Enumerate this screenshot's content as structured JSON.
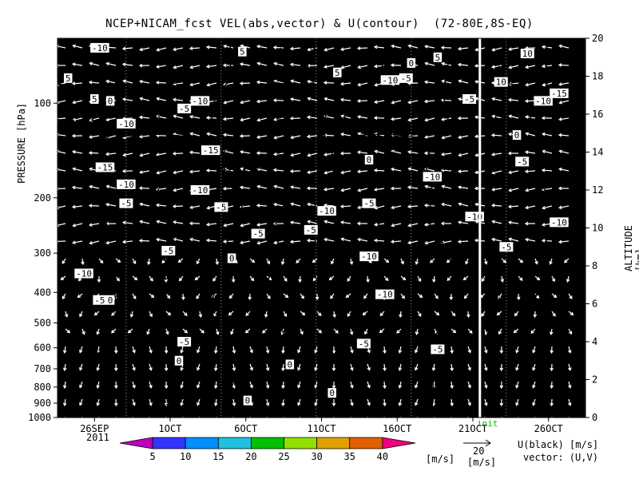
{
  "chart_data": {
    "type": "heatmap",
    "title": "NCEP+NICAM_fcst VEL(abs,vector) & U(contour)  (72-80E,8S-EQ)",
    "ylabel_left": "PRESSURE [hPa]",
    "ylabel_right": "ALTITUDE [km]",
    "x_ticks": [
      "26SEP",
      "1OCT",
      "6OCT",
      "11OCT",
      "16OCT",
      "21OCT",
      "26OCT"
    ],
    "x_year": "2011",
    "init_label": "init",
    "pressure_ticks": [
      100,
      200,
      300,
      400,
      500,
      600,
      700,
      800,
      900,
      1000
    ],
    "altitude_ticks": [
      0,
      2,
      4,
      6,
      8,
      10,
      12,
      14,
      16,
      18,
      20
    ],
    "colorbar": {
      "ticks": [
        5,
        10,
        15,
        20,
        25,
        30,
        35,
        40
      ],
      "unit": "[m/s]",
      "colors": [
        "#c000c0",
        "#3434ff",
        "#0090ff",
        "#20c0e0",
        "#00c000",
        "#90e000",
        "#e0a000",
        "#e06000",
        "#f00080"
      ]
    },
    "vector_ref": {
      "value": "20",
      "unit": "[m/s]"
    },
    "legend_text": [
      "U(black) [m/s]",
      "vector: (U,V)"
    ],
    "contour_labels": [
      {
        "t": "-10",
        "x": 0.08,
        "a": 19.5
      },
      {
        "t": "5",
        "x": 0.35,
        "a": 19.3
      },
      {
        "t": "5",
        "x": 0.72,
        "a": 19.0
      },
      {
        "t": "10",
        "x": 0.89,
        "a": 19.2
      },
      {
        "t": "5",
        "x": 0.02,
        "a": 17.9
      },
      {
        "t": "0",
        "x": 0.67,
        "a": 18.7
      },
      {
        "t": "5",
        "x": 0.53,
        "a": 18.2
      },
      {
        "t": "5",
        "x": 0.07,
        "a": 16.8
      },
      {
        "t": "0",
        "x": 0.1,
        "a": 16.7
      },
      {
        "t": "-10",
        "x": 0.27,
        "a": 16.7
      },
      {
        "t": "-5",
        "x": 0.24,
        "a": 16.3
      },
      {
        "t": "-10",
        "x": 0.13,
        "a": 15.5
      },
      {
        "t": "-10",
        "x": 0.63,
        "a": 17.8
      },
      {
        "t": "-5",
        "x": 0.66,
        "a": 17.9
      },
      {
        "t": "-5",
        "x": 0.78,
        "a": 16.8
      },
      {
        "t": "10",
        "x": 0.84,
        "a": 17.7
      },
      {
        "t": "-10",
        "x": 0.92,
        "a": 16.7
      },
      {
        "t": "-15",
        "x": 0.95,
        "a": 17.1
      },
      {
        "t": "0",
        "x": 0.87,
        "a": 14.9
      },
      {
        "t": "-15",
        "x": 0.29,
        "a": 14.1
      },
      {
        "t": "0",
        "x": 0.59,
        "a": 13.6
      },
      {
        "t": "-5",
        "x": 0.88,
        "a": 13.5
      },
      {
        "t": "-15",
        "x": 0.09,
        "a": 13.2
      },
      {
        "t": "-10",
        "x": 0.13,
        "a": 12.3
      },
      {
        "t": "-10",
        "x": 0.27,
        "a": 12.0
      },
      {
        "t": "-10",
        "x": 0.71,
        "a": 12.7
      },
      {
        "t": "-5",
        "x": 0.59,
        "a": 11.3
      },
      {
        "t": "-5",
        "x": 0.13,
        "a": 11.3
      },
      {
        "t": "-5",
        "x": 0.31,
        "a": 11.1
      },
      {
        "t": "-10",
        "x": 0.51,
        "a": 10.9
      },
      {
        "t": "-10",
        "x": 0.79,
        "a": 10.6
      },
      {
        "t": "-10",
        "x": 0.95,
        "a": 10.3
      },
      {
        "t": "-5",
        "x": 0.38,
        "a": 9.7
      },
      {
        "t": "-5",
        "x": 0.48,
        "a": 9.9
      },
      {
        "t": "-5",
        "x": 0.21,
        "a": 8.8
      },
      {
        "t": "0",
        "x": 0.33,
        "a": 8.4
      },
      {
        "t": "-10",
        "x": 0.59,
        "a": 8.5
      },
      {
        "t": "-5",
        "x": 0.85,
        "a": 9.0
      },
      {
        "t": "-10",
        "x": 0.05,
        "a": 7.6
      },
      {
        "t": "-10",
        "x": 0.62,
        "a": 6.5
      },
      {
        "t": "-5",
        "x": 0.08,
        "a": 6.2
      },
      {
        "t": "0",
        "x": 0.1,
        "a": 6.2
      },
      {
        "t": "-5",
        "x": 0.24,
        "a": 4.0
      },
      {
        "t": "0",
        "x": 0.23,
        "a": 3.0
      },
      {
        "t": "0",
        "x": 0.44,
        "a": 2.8
      },
      {
        "t": "-5",
        "x": 0.58,
        "a": 3.9
      },
      {
        "t": "-5",
        "x": 0.72,
        "a": 3.6
      },
      {
        "t": "0",
        "x": 0.36,
        "a": 0.9
      },
      {
        "t": "0",
        "x": 0.52,
        "a": 1.3
      }
    ]
  }
}
